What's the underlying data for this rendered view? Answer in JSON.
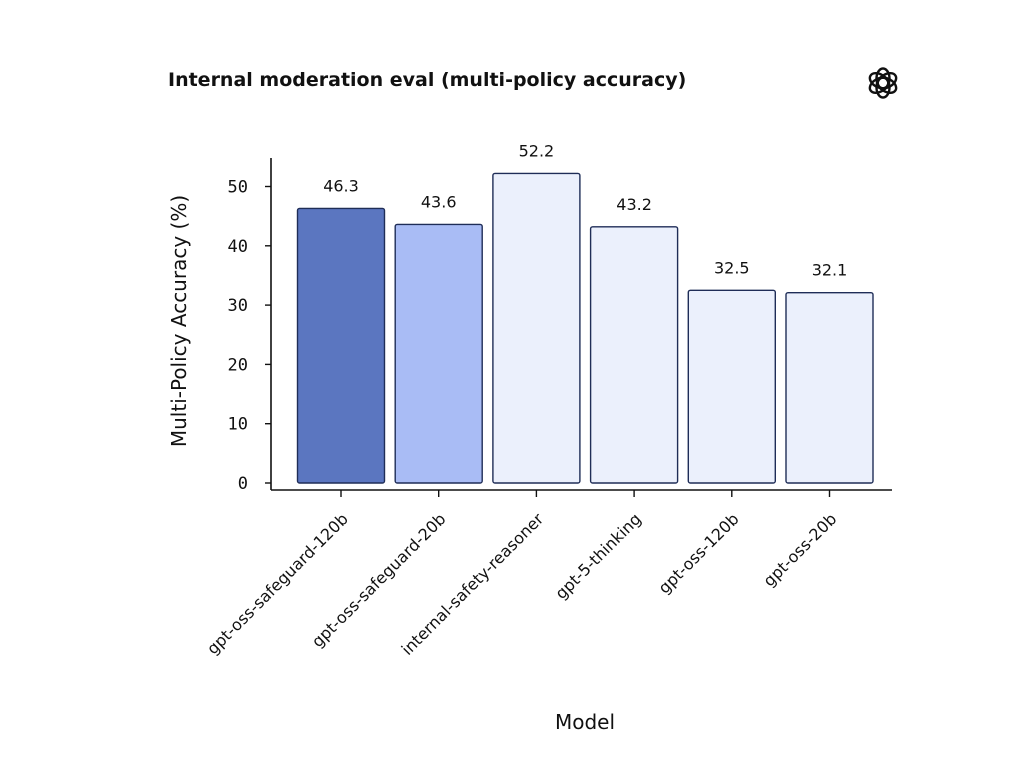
{
  "chart_data": {
    "type": "bar",
    "title": "Internal moderation eval (multi-policy accuracy)",
    "xlabel": "Model",
    "ylabel": "Multi-Policy Accuracy (%)",
    "ylim": [
      0,
      55
    ],
    "yticks": [
      0,
      10,
      20,
      30,
      40,
      50
    ],
    "grid": false,
    "categories": [
      "gpt-oss-safeguard-120b",
      "gpt-oss-safeguard-20b",
      "internal-safety-reasoner",
      "gpt-5-thinking",
      "gpt-oss-120b",
      "gpt-oss-20b"
    ],
    "values": [
      46.3,
      43.6,
      52.2,
      43.2,
      32.5,
      32.1
    ],
    "value_labels": [
      "46.3",
      "43.6",
      "52.2",
      "43.2",
      "32.5",
      "32.1"
    ],
    "bar_colors": [
      "#5b76c0",
      "#a9bcf5",
      "#ebf0fc",
      "#ebf0fc",
      "#ebf0fc",
      "#ebf0fc"
    ],
    "bar_edge_color": "#1f2d57"
  },
  "logo": {
    "icon": "openai-logo-icon"
  }
}
